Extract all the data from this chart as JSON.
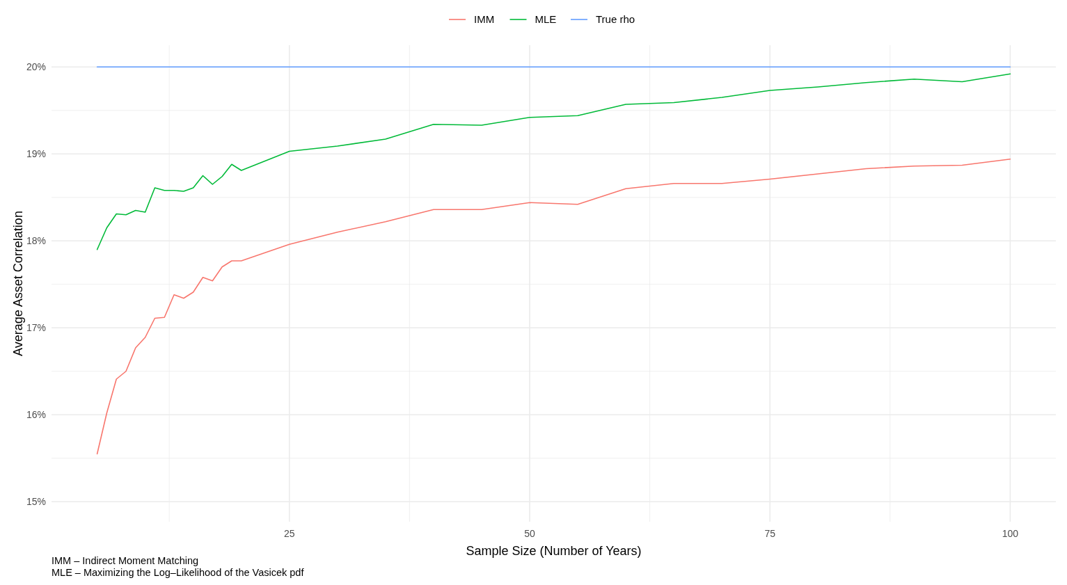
{
  "chart_data": {
    "type": "line",
    "xlabel": "Sample Size (Number of Years)",
    "ylabel": "Average Asset Correlation",
    "x": [
      5,
      6,
      7,
      8,
      9,
      10,
      11,
      12,
      13,
      14,
      15,
      16,
      17,
      18,
      19,
      20,
      25,
      30,
      35,
      40,
      45,
      50,
      55,
      60,
      65,
      70,
      75,
      80,
      85,
      90,
      95,
      100
    ],
    "series": [
      {
        "name": "IMM",
        "color": "#f8766d",
        "values": [
          15.55,
          16.02,
          16.41,
          16.5,
          16.77,
          16.89,
          17.11,
          17.12,
          17.38,
          17.34,
          17.41,
          17.58,
          17.54,
          17.7,
          17.77,
          17.77,
          17.96,
          18.1,
          18.22,
          18.36,
          18.36,
          18.44,
          18.42,
          18.6,
          18.66,
          18.66,
          18.71,
          18.77,
          18.83,
          18.86,
          18.87,
          18.94
        ]
      },
      {
        "name": "MLE",
        "color": "#00ba38",
        "values": [
          17.9,
          18.15,
          18.31,
          18.3,
          18.35,
          18.33,
          18.61,
          18.58,
          18.58,
          18.57,
          18.61,
          18.75,
          18.65,
          18.74,
          18.88,
          18.81,
          19.03,
          19.09,
          19.17,
          19.34,
          19.33,
          19.42,
          19.44,
          19.57,
          19.59,
          19.65,
          19.73,
          19.77,
          19.82,
          19.86,
          19.83,
          19.92
        ]
      },
      {
        "name": "True rho",
        "color": "#619cff",
        "values": [
          20,
          20,
          20,
          20,
          20,
          20,
          20,
          20,
          20,
          20,
          20,
          20,
          20,
          20,
          20,
          20,
          20,
          20,
          20,
          20,
          20,
          20,
          20,
          20,
          20,
          20,
          20,
          20,
          20,
          20,
          20,
          20
        ]
      }
    ],
    "xlim": [
      0.25,
      104.75
    ],
    "ylim": [
      14.77,
      20.25
    ],
    "xticks": [
      {
        "value": 12.5,
        "label": null
      },
      25,
      {
        "value": 37.5,
        "label": null
      },
      50,
      {
        "value": 62.5,
        "label": null
      },
      75,
      {
        "value": 87.5,
        "label": null
      },
      100
    ],
    "yticks": [
      {
        "value": 15,
        "label": "15%"
      },
      {
        "value": 15.5,
        "label": null
      },
      {
        "value": 16,
        "label": "16%"
      },
      {
        "value": 16.5,
        "label": null
      },
      {
        "value": 17,
        "label": "17%"
      },
      {
        "value": 17.5,
        "label": null
      },
      {
        "value": 18,
        "label": "18%"
      },
      {
        "value": 18.5,
        "label": null
      },
      {
        "value": 19,
        "label": "19%"
      },
      {
        "value": 19.5,
        "label": null
      },
      {
        "value": 20,
        "label": "20%"
      }
    ],
    "grid": true,
    "legend": "top",
    "marker": "none",
    "line_style": "solid",
    "annotations": [
      "IMM – Indirect Moment Matching",
      "MLE – Maximizing the Log–Likelihood of the Vasicek pdf"
    ]
  }
}
